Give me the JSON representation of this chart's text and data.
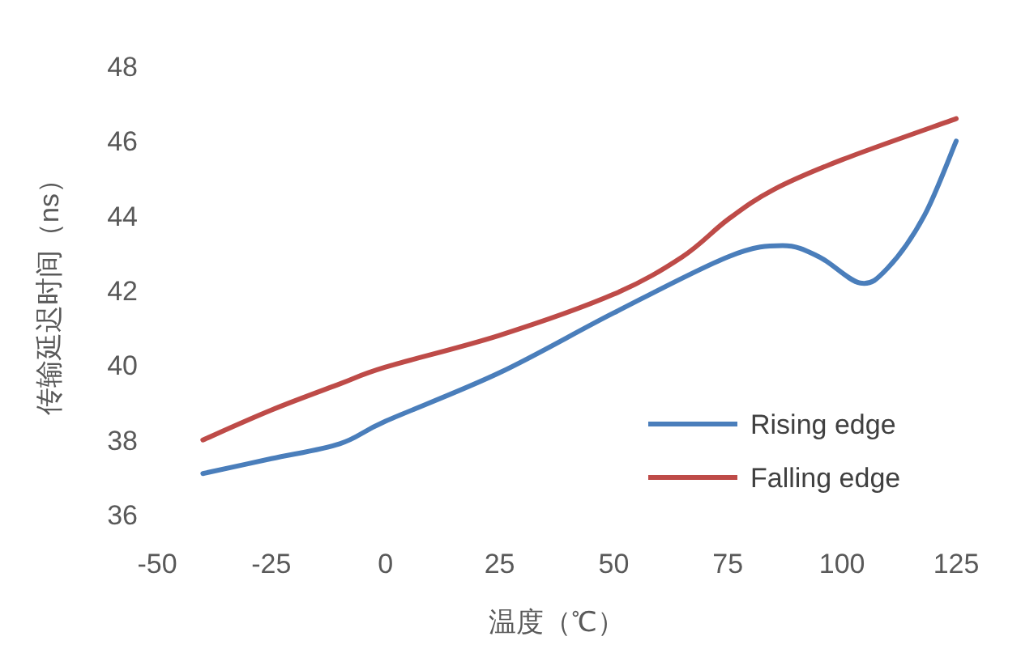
{
  "chart_data": {
    "type": "line",
    "xlabel": "温度（℃）",
    "ylabel": "传输延迟时间（ns）",
    "xlim": [
      -50,
      125
    ],
    "xticks": [
      -50,
      -25,
      0,
      25,
      50,
      75,
      100,
      125
    ],
    "ylim": [
      36,
      48
    ],
    "yticks": [
      36,
      38,
      40,
      42,
      44,
      46,
      48
    ],
    "grid": false,
    "legend": "bottom right",
    "series": [
      {
        "name": "Rising edge",
        "color": "#4a7ebb",
        "x": [
          -40,
          -25,
          -10,
          0,
          25,
          50,
          75,
          87,
          95,
          104,
          110,
          118,
          125
        ],
        "values": [
          37.1,
          37.5,
          37.9,
          38.5,
          39.8,
          41.4,
          42.9,
          43.2,
          42.9,
          42.2,
          42.6,
          44.0,
          46.0
        ]
      },
      {
        "name": "Falling edge",
        "color": "#be4b48",
        "x": [
          -40,
          -25,
          -10,
          0,
          25,
          50,
          65,
          75,
          85,
          100,
          125
        ],
        "values": [
          38.0,
          38.8,
          39.5,
          39.95,
          40.8,
          41.9,
          42.9,
          43.9,
          44.7,
          45.5,
          46.6
        ]
      }
    ]
  }
}
